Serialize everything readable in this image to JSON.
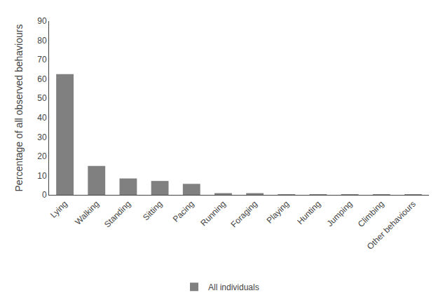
{
  "chart_data": {
    "type": "bar",
    "categories": [
      "Lying",
      "Walking",
      "Standing",
      "Sitting",
      "Pacing",
      "Running",
      "Foraging",
      "Playing",
      "Hunting",
      "Jumping",
      "Climbing",
      "Other behaviours"
    ],
    "series": [
      {
        "name": "All individuals",
        "color": "#808080",
        "values": [
          62.5,
          15.0,
          8.5,
          7.2,
          5.7,
          0.9,
          0.9,
          0.3,
          0.05,
          0.05,
          0.05,
          0.05
        ]
      }
    ],
    "ylabel": "Percentage of all observed behaviours",
    "ylim": [
      0,
      90
    ],
    "yticks": [
      0,
      10,
      20,
      30,
      40,
      50,
      60,
      70,
      80,
      90
    ],
    "grid": false,
    "legend": "bottom"
  }
}
